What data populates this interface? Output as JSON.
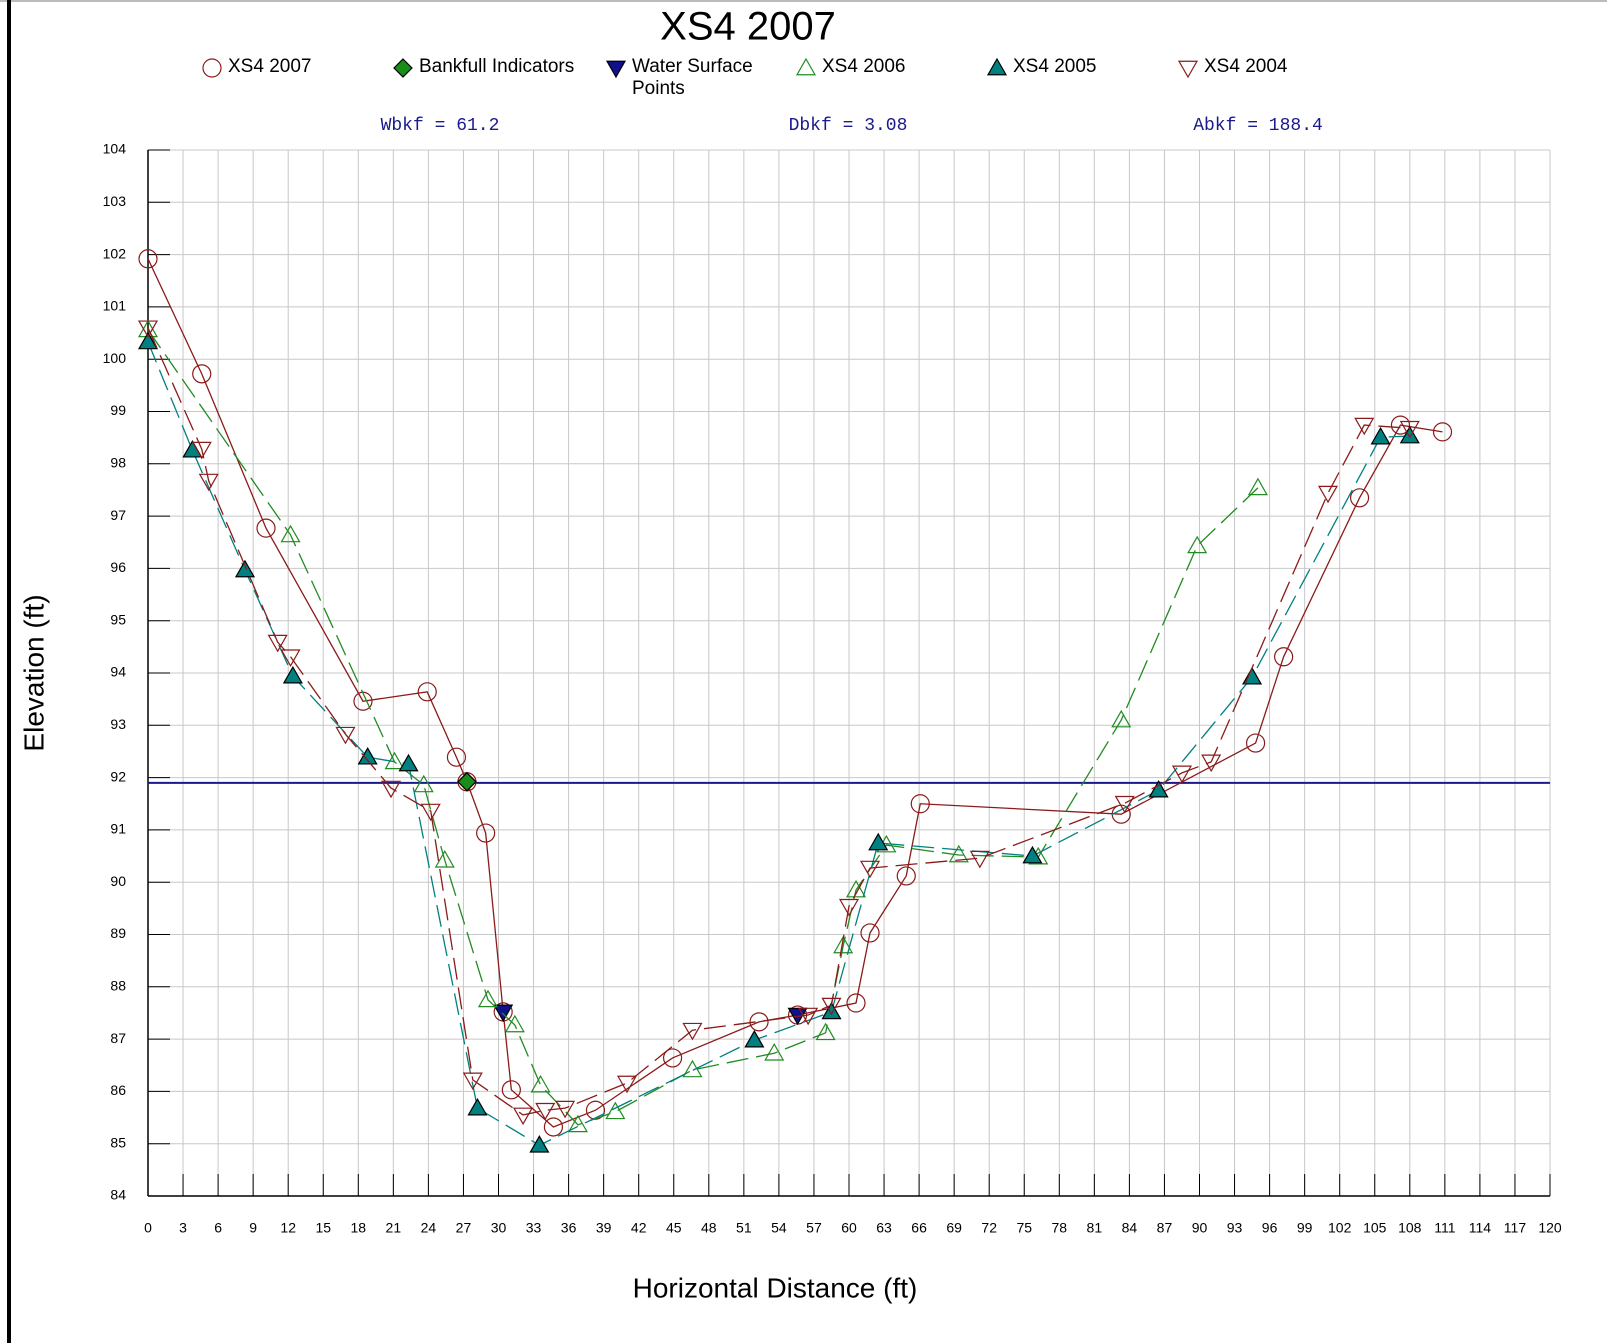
{
  "chart_data": {
    "type": "line",
    "title": "XS4 2007",
    "xlabel": "Horizontal Distance (ft)",
    "ylabel": "Elevation (ft)",
    "annotations": [
      "Wbkf = 61.2",
      "Dbkf = 3.08",
      "Abkf = 188.4"
    ],
    "xlim": [
      0,
      120
    ],
    "xticks": [
      0,
      3,
      6,
      9,
      12,
      15,
      18,
      21,
      24,
      27,
      30,
      33,
      36,
      39,
      42,
      45,
      48,
      51,
      54,
      57,
      60,
      63,
      66,
      69,
      72,
      75,
      78,
      81,
      84,
      87,
      90,
      93,
      96,
      99,
      102,
      105,
      108,
      111,
      114,
      117,
      120
    ],
    "ylim": [
      84,
      104
    ],
    "yticks": [
      84,
      85,
      86,
      87,
      88,
      89,
      90,
      91,
      92,
      93,
      94,
      95,
      96,
      97,
      98,
      99,
      100,
      101,
      102,
      103,
      104
    ],
    "grid": true,
    "hline": {
      "value": 91.9,
      "color": "#1a1a8c"
    },
    "series": [
      {
        "name": "XS4 2007",
        "color": "#8b1a1a",
        "marker": "circle",
        "filled": false,
        "line": "solid",
        "x": [
          0,
          4.6,
          10.1,
          18.4,
          23.9,
          26.4,
          27.3,
          28.9,
          30.4,
          31.1,
          34.7,
          38.3,
          44.9,
          52.3,
          55.6,
          60.6,
          61.8,
          64.9,
          66.1,
          83.3,
          94.8,
          97.2,
          103.7,
          107.2,
          110.8
        ],
        "values": [
          101.92,
          99.72,
          96.77,
          93.46,
          93.64,
          92.39,
          91.92,
          90.94,
          87.52,
          86.03,
          85.32,
          85.64,
          86.64,
          87.33,
          87.46,
          87.69,
          89.03,
          90.12,
          91.5,
          91.3,
          92.66,
          94.31,
          97.35,
          98.74,
          98.61
        ]
      },
      {
        "name": "Bankfull Indicators",
        "color": "#1a8c1a",
        "marker": "diamond",
        "filled": true,
        "line": "none",
        "x": [
          27.3
        ],
        "values": [
          91.92
        ]
      },
      {
        "name": "Water Surface Points",
        "color": "#10108c",
        "marker": "tri-down",
        "filled": true,
        "line": "none",
        "x": [
          30.4,
          55.6
        ],
        "values": [
          87.52,
          87.46
        ]
      },
      {
        "name": "XS4 2006",
        "color": "#228b22",
        "marker": "tri-up",
        "filled": false,
        "line": "dashed",
        "x": [
          0,
          12.2,
          21.1,
          23.6,
          25.4,
          29.1,
          31.4,
          33.6,
          36.8,
          40.0,
          46.6,
          53.6,
          58.0,
          59.5,
          60.6,
          63.2,
          69.4,
          76.2,
          83.3,
          89.8,
          95.0
        ],
        "values": [
          100.56,
          96.64,
          92.3,
          91.86,
          90.42,
          87.75,
          87.27,
          86.12,
          85.36,
          85.61,
          86.41,
          86.73,
          87.12,
          88.78,
          89.85,
          90.71,
          90.52,
          90.48,
          93.1,
          96.43,
          97.54
        ]
      },
      {
        "name": "XS4 2005",
        "color": "#008080",
        "marker": "tri-up",
        "filled": true,
        "line": "dashed",
        "x": [
          0,
          3.8,
          8.3,
          12.4,
          18.8,
          22.3,
          28.2,
          33.5,
          51.9,
          58.5,
          62.5,
          75.7,
          86.5,
          94.5,
          105.5,
          108.0
        ],
        "values": [
          100.33,
          98.26,
          95.97,
          93.94,
          92.39,
          92.26,
          85.68,
          84.97,
          86.98,
          87.52,
          90.75,
          90.5,
          91.76,
          93.92,
          98.51,
          98.53
        ]
      },
      {
        "name": "XS4 2004",
        "color": "#8b1a1a",
        "marker": "tri-down",
        "filled": false,
        "line": "dashed",
        "x": [
          0,
          4.6,
          5.2,
          11.1,
          12.2,
          16.9,
          20.8,
          24.2,
          27.8,
          32.1,
          34.0,
          35.7,
          41.0,
          46.6,
          56.5,
          58.5,
          60.0,
          61.8,
          71.2,
          83.6,
          88.5,
          91.0,
          101.0,
          104.1,
          108.0
        ],
        "values": [
          100.6,
          98.28,
          97.67,
          94.59,
          94.31,
          92.83,
          91.8,
          91.36,
          86.22,
          85.55,
          85.64,
          85.68,
          86.16,
          87.17,
          87.46,
          87.65,
          89.54,
          90.27,
          90.46,
          91.51,
          92.09,
          92.3,
          97.44,
          98.74,
          98.68
        ]
      }
    ]
  }
}
